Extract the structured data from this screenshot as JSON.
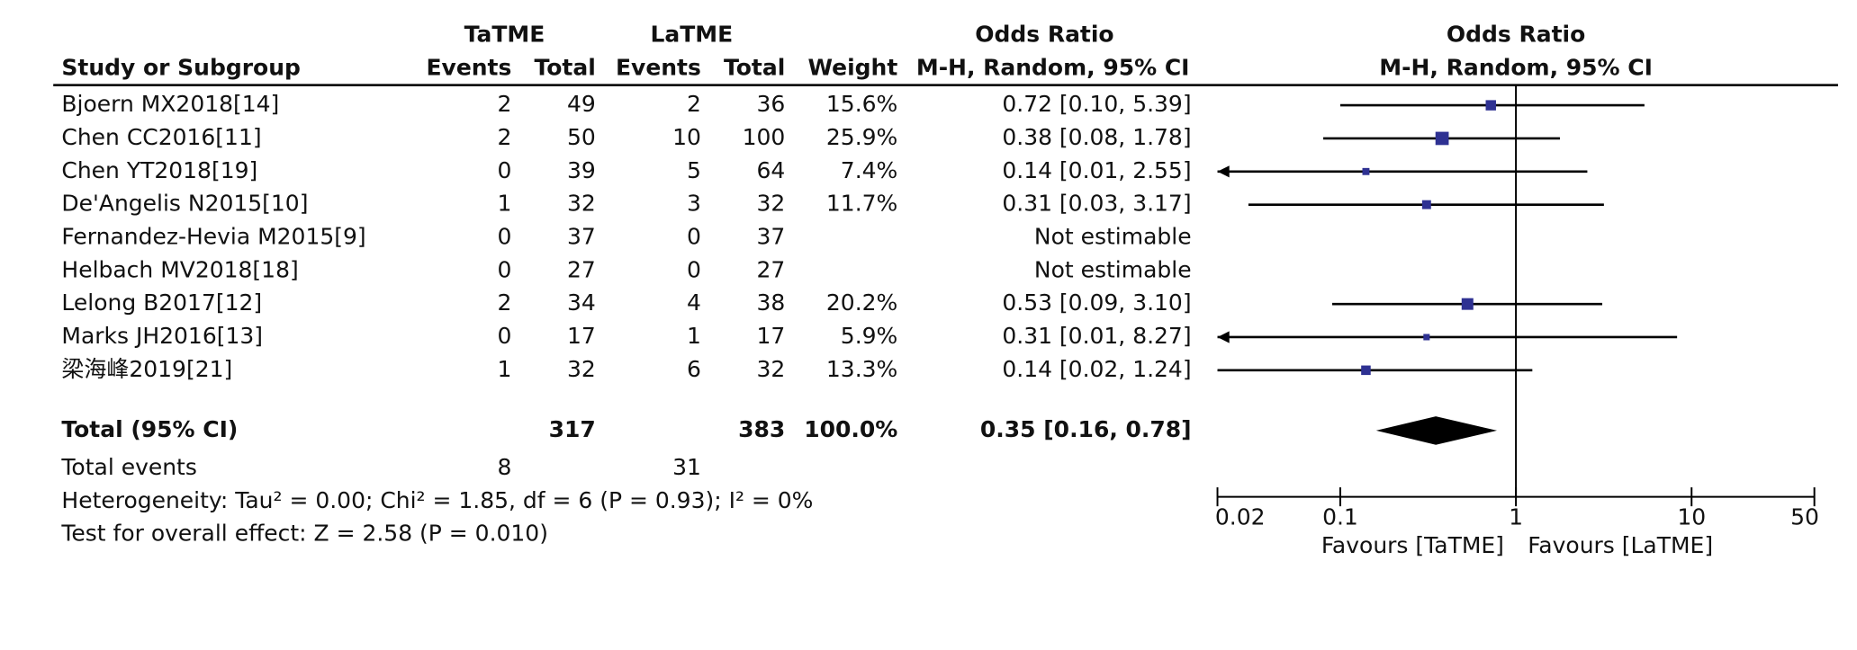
{
  "chart_data": {
    "type": "forest",
    "headers": {
      "group_tatme": "TaTME",
      "group_latme": "LaTME",
      "or_table": "Odds Ratio",
      "or_table_method": "M-H, Random, 95% CI",
      "or_plot": "Odds Ratio",
      "or_plot_method": "M-H, Random, 95% CI",
      "study": "Study or Subgroup",
      "columns": [
        "Events",
        "Total",
        "Events",
        "Total",
        "Weight"
      ]
    },
    "studies": [
      {
        "study": "Bjoern MX2018[14]",
        "tatme_events": 2,
        "tatme_total": 49,
        "latme_events": 2,
        "latme_total": 36,
        "weight": 15.6,
        "weight_label": "15.6%",
        "or": 0.72,
        "ci": [
          0.1,
          5.39
        ],
        "ci_label": "0.72 [0.10, 5.39]"
      },
      {
        "study": "Chen CC2016[11]",
        "tatme_events": 2,
        "tatme_total": 50,
        "latme_events": 10,
        "latme_total": 100,
        "weight": 25.9,
        "weight_label": "25.9%",
        "or": 0.38,
        "ci": [
          0.08,
          1.78
        ],
        "ci_label": "0.38 [0.08, 1.78]"
      },
      {
        "study": "Chen YT2018[19]",
        "tatme_events": 0,
        "tatme_total": 39,
        "latme_events": 5,
        "latme_total": 64,
        "weight": 7.4,
        "weight_label": "7.4%",
        "or": 0.14,
        "ci": [
          0.01,
          2.55
        ],
        "ci_label": "0.14 [0.01, 2.55]"
      },
      {
        "study": "De'Angelis N2015[10]",
        "tatme_events": 1,
        "tatme_total": 32,
        "latme_events": 3,
        "latme_total": 32,
        "weight": 11.7,
        "weight_label": "11.7%",
        "or": 0.31,
        "ci": [
          0.03,
          3.17
        ],
        "ci_label": "0.31 [0.03, 3.17]"
      },
      {
        "study": "Fernandez-Hevia M2015[9]",
        "tatme_events": 0,
        "tatme_total": 37,
        "latme_events": 0,
        "latme_total": 37,
        "weight": null,
        "weight_label": null,
        "or": null,
        "ci": null,
        "ci_label": "Not estimable"
      },
      {
        "study": "Helbach MV2018[18]",
        "tatme_events": 0,
        "tatme_total": 27,
        "latme_events": 0,
        "latme_total": 27,
        "weight": null,
        "weight_label": null,
        "or": null,
        "ci": null,
        "ci_label": "Not estimable"
      },
      {
        "study": "Lelong B2017[12]",
        "tatme_events": 2,
        "tatme_total": 34,
        "latme_events": 4,
        "latme_total": 38,
        "weight": 20.2,
        "weight_label": "20.2%",
        "or": 0.53,
        "ci": [
          0.09,
          3.1
        ],
        "ci_label": "0.53 [0.09, 3.10]"
      },
      {
        "study": "Marks JH2016[13]",
        "tatme_events": 0,
        "tatme_total": 17,
        "latme_events": 1,
        "latme_total": 17,
        "weight": 5.9,
        "weight_label": "5.9%",
        "or": 0.31,
        "ci": [
          0.01,
          8.27
        ],
        "ci_label": "0.31 [0.01, 8.27]"
      },
      {
        "study": "梁海峰2019[21]",
        "tatme_events": 1,
        "tatme_total": 32,
        "latme_events": 6,
        "latme_total": 32,
        "weight": 13.3,
        "weight_label": "13.3%",
        "or": 0.14,
        "ci": [
          0.02,
          1.24
        ],
        "ci_label": "0.14 [0.02, 1.24]"
      }
    ],
    "total": {
      "label": "Total (95% CI)",
      "tatme_total": 317,
      "latme_total": 383,
      "weight": 100,
      "weight_label": "100.0%",
      "or": 0.35,
      "ci": [
        0.16,
        0.78
      ],
      "ci_label": "0.35 [0.16, 0.78]"
    },
    "total_events": {
      "label": "Total events",
      "tatme": 8,
      "latme": 31
    },
    "heterogeneity": "Heterogeneity: Tau² = 0.00; Chi² = 1.85, df = 6 (P = 0.93); I² = 0%",
    "overall_effect": "Test for overall effect: Z = 2.58 (P = 0.010)",
    "log_x": true,
    "xlim": [
      0.02,
      50
    ],
    "xticks": [
      0.02,
      0.1,
      1,
      10,
      50
    ],
    "favours_left": "Favours [TaTME]",
    "favours_right": "Favours [LaTME]",
    "square_color": "#2e3192",
    "diamond_color": "#000000"
  }
}
